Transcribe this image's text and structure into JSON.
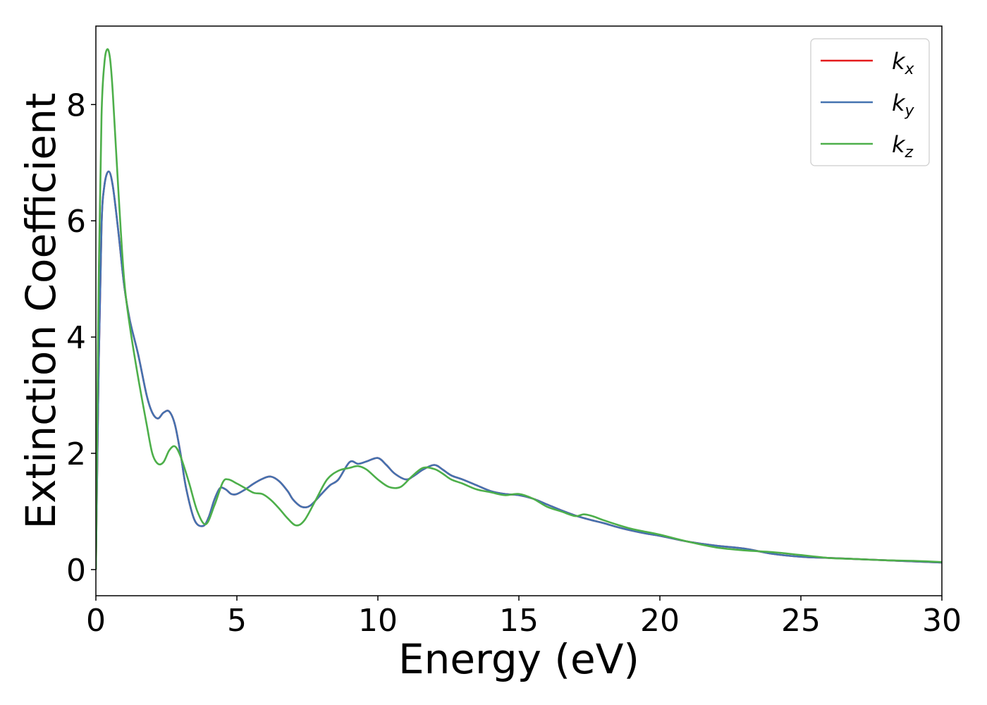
{
  "chart_data": {
    "type": "line",
    "xlabel": "Energy (eV)",
    "ylabel": "Extinction Coefficient",
    "xlim": [
      0,
      30
    ],
    "ylim": [
      -0.45,
      9.35
    ],
    "xticks": [
      0,
      5,
      10,
      15,
      20,
      25,
      30
    ],
    "xtick_labels": [
      "0",
      "5",
      "10",
      "15",
      "20",
      "25",
      "30"
    ],
    "yticks": [
      0,
      2,
      4,
      6,
      8
    ],
    "ytick_labels": [
      "0",
      "2",
      "4",
      "6",
      "8"
    ],
    "grid": false,
    "legend_position": "top-right",
    "series": [
      {
        "name": "k_x",
        "legend_base": "k",
        "legend_sub": "x",
        "color": "#e41a1c",
        "x": [
          0,
          0.1,
          0.2,
          0.3,
          0.45,
          0.6,
          0.8,
          1.0,
          1.2,
          1.5,
          1.8,
          2.0,
          2.2,
          2.4,
          2.6,
          2.8,
          3.0,
          3.2,
          3.5,
          3.8,
          4.0,
          4.2,
          4.4,
          4.6,
          4.8,
          5.0,
          5.3,
          5.6,
          5.9,
          6.2,
          6.5,
          6.8,
          7.0,
          7.3,
          7.6,
          8.0,
          8.3,
          8.6,
          9.0,
          9.3,
          9.6,
          10.0,
          10.3,
          10.6,
          11.0,
          11.3,
          11.6,
          12.0,
          12.3,
          12.6,
          13.0,
          13.5,
          14.0,
          14.5,
          15.0,
          15.5,
          16.0,
          16.5,
          17.0,
          17.5,
          18.0,
          18.5,
          19.0,
          19.5,
          20.0,
          21.0,
          22.0,
          23.0,
          24.0,
          25.0,
          26.0,
          27.0,
          28.0,
          29.0,
          30.0
        ],
        "values": [
          0,
          3.5,
          5.9,
          6.6,
          6.85,
          6.6,
          5.8,
          4.9,
          4.3,
          3.7,
          3.0,
          2.7,
          2.6,
          2.7,
          2.72,
          2.5,
          2.0,
          1.4,
          0.85,
          0.75,
          0.9,
          1.2,
          1.4,
          1.38,
          1.3,
          1.3,
          1.38,
          1.48,
          1.56,
          1.6,
          1.52,
          1.35,
          1.2,
          1.08,
          1.1,
          1.3,
          1.45,
          1.55,
          1.85,
          1.82,
          1.86,
          1.92,
          1.8,
          1.65,
          1.55,
          1.62,
          1.72,
          1.8,
          1.72,
          1.62,
          1.55,
          1.45,
          1.35,
          1.3,
          1.28,
          1.22,
          1.12,
          1.02,
          0.93,
          0.86,
          0.8,
          0.73,
          0.67,
          0.62,
          0.58,
          0.48,
          0.41,
          0.36,
          0.27,
          0.22,
          0.2,
          0.18,
          0.16,
          0.14,
          0.12
        ]
      },
      {
        "name": "k_y",
        "legend_base": "k",
        "legend_sub": "y",
        "color": "#4472b0",
        "x": [
          0,
          0.1,
          0.2,
          0.3,
          0.45,
          0.6,
          0.8,
          1.0,
          1.2,
          1.5,
          1.8,
          2.0,
          2.2,
          2.4,
          2.6,
          2.8,
          3.0,
          3.2,
          3.5,
          3.8,
          4.0,
          4.2,
          4.4,
          4.6,
          4.8,
          5.0,
          5.3,
          5.6,
          5.9,
          6.2,
          6.5,
          6.8,
          7.0,
          7.3,
          7.6,
          8.0,
          8.3,
          8.6,
          9.0,
          9.3,
          9.6,
          10.0,
          10.3,
          10.6,
          11.0,
          11.3,
          11.6,
          12.0,
          12.3,
          12.6,
          13.0,
          13.5,
          14.0,
          14.5,
          15.0,
          15.5,
          16.0,
          16.5,
          17.0,
          17.5,
          18.0,
          18.5,
          19.0,
          19.5,
          20.0,
          21.0,
          22.0,
          23.0,
          24.0,
          25.0,
          26.0,
          27.0,
          28.0,
          29.0,
          30.0
        ],
        "values": [
          0,
          3.5,
          5.9,
          6.6,
          6.85,
          6.6,
          5.8,
          4.9,
          4.3,
          3.7,
          3.0,
          2.7,
          2.6,
          2.7,
          2.72,
          2.5,
          2.0,
          1.4,
          0.85,
          0.75,
          0.9,
          1.2,
          1.4,
          1.38,
          1.3,
          1.3,
          1.38,
          1.48,
          1.56,
          1.6,
          1.52,
          1.35,
          1.2,
          1.08,
          1.1,
          1.3,
          1.45,
          1.55,
          1.85,
          1.82,
          1.86,
          1.92,
          1.8,
          1.65,
          1.55,
          1.62,
          1.72,
          1.8,
          1.72,
          1.62,
          1.55,
          1.45,
          1.35,
          1.3,
          1.28,
          1.22,
          1.12,
          1.02,
          0.93,
          0.86,
          0.8,
          0.73,
          0.67,
          0.62,
          0.58,
          0.48,
          0.41,
          0.36,
          0.27,
          0.22,
          0.2,
          0.18,
          0.16,
          0.14,
          0.12
        ]
      },
      {
        "name": "k_z",
        "legend_base": "k",
        "legend_sub": "z",
        "color": "#4daf4a",
        "x": [
          0,
          0.1,
          0.2,
          0.3,
          0.4,
          0.5,
          0.6,
          0.8,
          1.0,
          1.2,
          1.5,
          1.8,
          2.0,
          2.2,
          2.4,
          2.6,
          2.8,
          3.0,
          3.3,
          3.6,
          3.9,
          4.2,
          4.5,
          4.7,
          5.0,
          5.3,
          5.6,
          5.9,
          6.2,
          6.5,
          6.8,
          7.1,
          7.4,
          7.8,
          8.2,
          8.6,
          9.0,
          9.3,
          9.6,
          10.0,
          10.4,
          10.8,
          11.2,
          11.6,
          12.0,
          12.3,
          12.6,
          13.0,
          13.5,
          14.0,
          14.5,
          15.0,
          15.5,
          16.0,
          16.5,
          17.0,
          17.3,
          17.6,
          18.0,
          18.5,
          19.0,
          19.5,
          20.0,
          21.0,
          22.0,
          23.0,
          24.0,
          25.0,
          26.0,
          27.0,
          28.0,
          29.0,
          30.0
        ],
        "values": [
          0,
          5.0,
          7.8,
          8.7,
          8.95,
          8.8,
          8.2,
          6.5,
          5.0,
          4.2,
          3.3,
          2.5,
          2.0,
          1.82,
          1.85,
          2.05,
          2.12,
          1.95,
          1.5,
          1.0,
          0.78,
          1.1,
          1.5,
          1.55,
          1.48,
          1.4,
          1.32,
          1.3,
          1.2,
          1.05,
          0.88,
          0.76,
          0.85,
          1.2,
          1.55,
          1.7,
          1.75,
          1.78,
          1.72,
          1.55,
          1.42,
          1.42,
          1.6,
          1.75,
          1.73,
          1.65,
          1.55,
          1.48,
          1.38,
          1.33,
          1.28,
          1.3,
          1.22,
          1.08,
          1.0,
          0.92,
          0.95,
          0.92,
          0.85,
          0.77,
          0.7,
          0.65,
          0.6,
          0.48,
          0.38,
          0.33,
          0.3,
          0.25,
          0.2,
          0.18,
          0.16,
          0.15,
          0.13
        ]
      }
    ]
  }
}
